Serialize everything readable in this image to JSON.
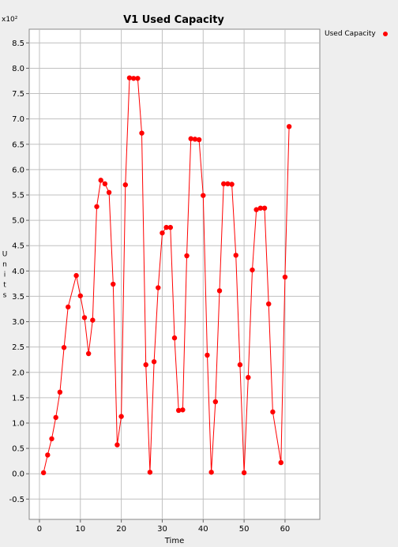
{
  "chart_data": {
    "type": "line",
    "title": "V1 Used Capacity",
    "xlabel": "Time",
    "ylabel": "Units",
    "y_multiplier_label": "x10²",
    "xlim": [
      -2.5,
      68.5
    ],
    "ylim": [
      -0.9,
      8.77
    ],
    "x_ticks": [
      "0",
      "10",
      "20",
      "30",
      "40",
      "50",
      "60"
    ],
    "y_ticks": [
      "-0.5",
      "0.0",
      "0.5",
      "1.0",
      "1.5",
      "2.0",
      "2.5",
      "3.0",
      "3.5",
      "4.0",
      "4.5",
      "5.0",
      "5.5",
      "6.0",
      "6.5",
      "7.0",
      "7.5",
      "8.0",
      "8.5"
    ],
    "grid": true,
    "legend_position": "top-right",
    "series": [
      {
        "name": "Used Capacity",
        "color": "#ff0000",
        "x": [
          1,
          2,
          3,
          4,
          5,
          6,
          7,
          9,
          10,
          11,
          12,
          13,
          14,
          15,
          16,
          17,
          18,
          19,
          20,
          21,
          22,
          23,
          24,
          25,
          26,
          27,
          28,
          29,
          30,
          31,
          32,
          33,
          34,
          35,
          36,
          37,
          38,
          39,
          40,
          41,
          42,
          43,
          44,
          45,
          46,
          47,
          48,
          49,
          50,
          51,
          52,
          53,
          54,
          55,
          56,
          57,
          59,
          60,
          61
        ],
        "y": [
          0.02,
          0.37,
          0.69,
          1.11,
          1.61,
          2.49,
          3.29,
          3.91,
          3.51,
          3.08,
          2.37,
          3.03,
          5.27,
          5.79,
          5.72,
          5.55,
          3.74,
          0.57,
          1.13,
          5.7,
          7.81,
          7.8,
          7.8,
          6.72,
          2.15,
          0.03,
          2.21,
          3.67,
          4.75,
          4.86,
          4.86,
          2.68,
          1.25,
          1.26,
          4.3,
          6.61,
          6.6,
          6.59,
          5.49,
          2.34,
          0.03,
          1.42,
          3.61,
          5.72,
          5.72,
          5.71,
          4.31,
          2.15,
          0.02,
          1.9,
          4.02,
          5.21,
          5.24,
          5.24,
          3.35,
          1.22,
          0.22,
          3.88,
          6.85
        ]
      }
    ]
  }
}
